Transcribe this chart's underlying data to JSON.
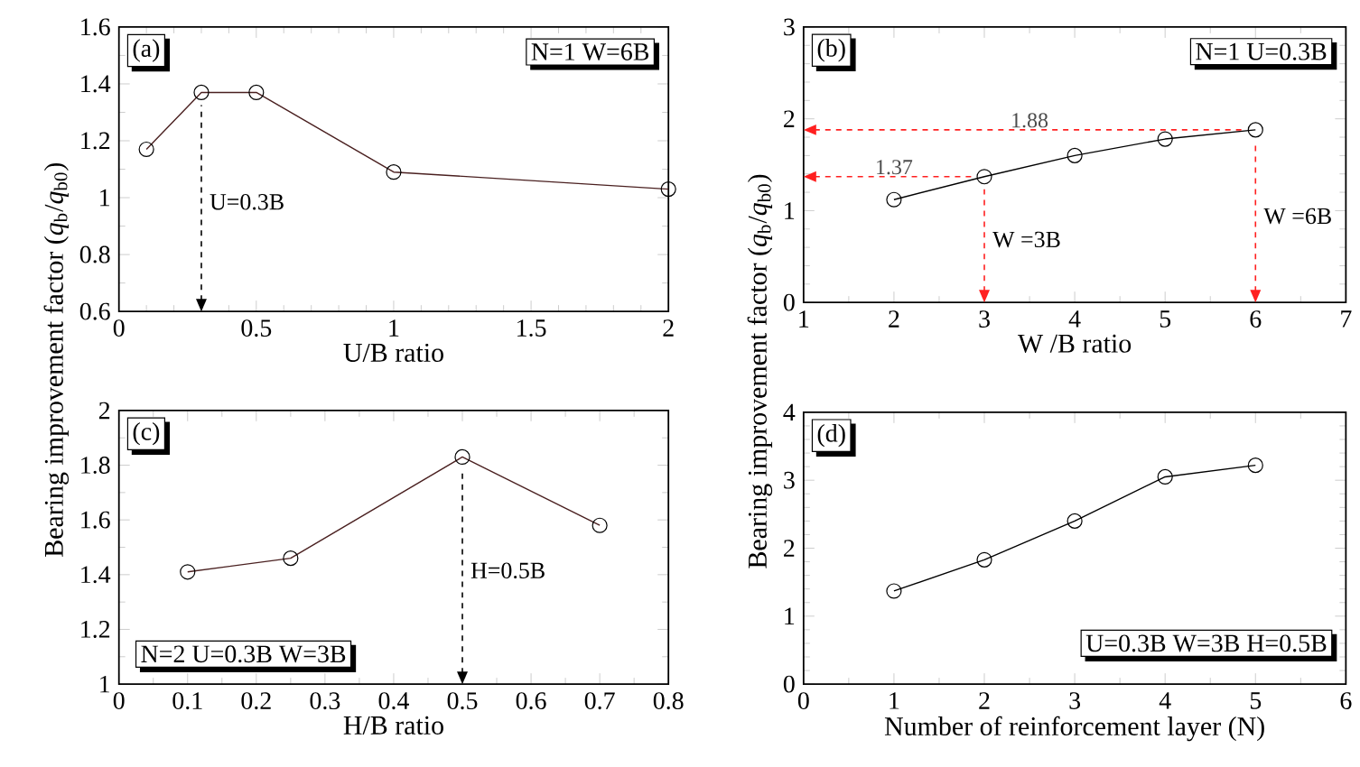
{
  "chart_data": [
    {
      "type": "line",
      "xlabel": "U/B ratio",
      "ylabel": "Bearing improvement factor (*q*$_{b}$/*q*$_{b0}$)",
      "x": [
        0.1,
        0.3,
        0.5,
        1,
        2
      ],
      "series": [
        {
          "color": "#4a2020",
          "values": [
            1.17,
            1.37,
            1.37,
            1.09,
            1.03
          ]
        }
      ],
      "xlim": [
        0,
        2
      ],
      "xticks": [
        0,
        0.5,
        1,
        1.5,
        2
      ],
      "ylim": [
        0.6,
        1.6
      ],
      "yticks": [
        0.6,
        0.8,
        1,
        1.2,
        1.4,
        1.6
      ],
      "marker": "circle",
      "line_style": "solid",
      "ref_lines": [
        {
          "axis": "x",
          "value": 0.3,
          "label": "U=0.3B",
          "color": "#000000",
          "line_style": "dashed"
        }
      ],
      "annotations": [
        "(a)",
        "N=1 W=6B"
      ]
    },
    {
      "type": "line",
      "xlabel": "W /B ratio",
      "ylabel": "Bearing improvement factor (*q*$_{b}$/*q*$_{b0}$)",
      "x": [
        2,
        3,
        4,
        5,
        6
      ],
      "series": [
        {
          "color": "#000000",
          "values": [
            1.12,
            1.37,
            1.6,
            1.78,
            1.88
          ]
        }
      ],
      "xlim": [
        1,
        7
      ],
      "xticks": [
        1,
        2,
        3,
        4,
        5,
        6,
        7
      ],
      "ylim": [
        0,
        3
      ],
      "yticks": [
        0,
        1,
        2,
        3
      ],
      "marker": "circle",
      "line_style": "solid",
      "ref_lines": [
        {
          "axis": "y",
          "value": 1.88,
          "label": "1.88",
          "color": "#ff2020",
          "line_style": "dashed"
        },
        {
          "axis": "y",
          "value": 1.37,
          "label": "1.37",
          "color": "#ff2020",
          "line_style": "dashed"
        },
        {
          "axis": "x",
          "value": 3,
          "label": "W =3B",
          "color": "#ff2020",
          "line_style": "dashed"
        },
        {
          "axis": "x",
          "value": 6,
          "label": "W =6B",
          "color": "#ff2020",
          "line_style": "dashed"
        }
      ],
      "annotations": [
        "(b)",
        "N=1 U=0.3B"
      ]
    },
    {
      "type": "line",
      "xlabel": "H/B ratio",
      "x": [
        0.1,
        0.25,
        0.5,
        0.7
      ],
      "series": [
        {
          "color": "#4a2020",
          "values": [
            1.41,
            1.46,
            1.83,
            1.58
          ]
        }
      ],
      "xlim": [
        0,
        0.8
      ],
      "xticks": [
        0,
        0.1,
        0.2,
        0.3,
        0.4,
        0.5,
        0.6,
        0.7,
        0.8
      ],
      "ylim": [
        1,
        2
      ],
      "yticks": [
        1,
        1.2,
        1.4,
        1.6,
        1.8,
        2
      ],
      "marker": "circle",
      "line_style": "solid",
      "ref_lines": [
        {
          "axis": "x",
          "value": 0.5,
          "label": "H=0.5B",
          "color": "#000000",
          "line_style": "dashed"
        }
      ],
      "annotations": [
        "(c)",
        "N=2 U=0.3B W=3B"
      ]
    },
    {
      "type": "line",
      "xlabel": "Number of reinforcement layer (N)",
      "x": [
        1,
        2,
        3,
        4,
        5
      ],
      "series": [
        {
          "color": "#000000",
          "values": [
            1.37,
            1.83,
            2.4,
            3.05,
            3.22
          ]
        }
      ],
      "xlim": [
        0,
        6
      ],
      "xticks": [
        0,
        1,
        2,
        3,
        4,
        5,
        6
      ],
      "ylim": [
        0,
        4
      ],
      "yticks": [
        0,
        1,
        2,
        3,
        4
      ],
      "marker": "circle",
      "line_style": "solid",
      "annotations": [
        "(d)",
        "U=0.3B W=3B H=0.5B"
      ]
    }
  ]
}
